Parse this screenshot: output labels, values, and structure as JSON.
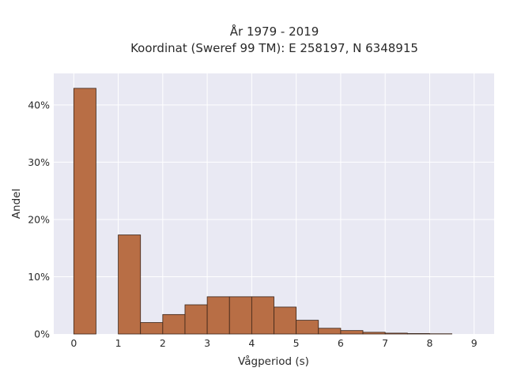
{
  "chart_data": {
    "type": "bar",
    "title": [
      "År 1979 - 2019",
      "Koordinat (Sweref 99 TM): E 258197, N 6348915"
    ],
    "xlabel": "Vågperiod (s)",
    "ylabel": "Andel",
    "xlim": [
      -0.45,
      9.45
    ],
    "ylim": [
      0,
      0.455
    ],
    "x_ticks": [
      0,
      1,
      2,
      3,
      4,
      5,
      6,
      7,
      8,
      9
    ],
    "x_tick_labels": [
      "0",
      "1",
      "2",
      "3",
      "4",
      "5",
      "6",
      "7",
      "8",
      "9"
    ],
    "y_ticks": [
      0,
      0.1,
      0.2,
      0.3,
      0.4
    ],
    "y_tick_labels": [
      "0%",
      "10%",
      "20%",
      "30%",
      "40%"
    ],
    "grid": true,
    "bar_color": "#b86e45",
    "bar_edge_color": "#3a2418",
    "plot_background": "#e9e9f3",
    "bins": [
      {
        "start": 0.0,
        "end": 0.5,
        "value": 0.429
      },
      {
        "start": 0.5,
        "end": 1.0,
        "value": 0.0
      },
      {
        "start": 1.0,
        "end": 1.5,
        "value": 0.173
      },
      {
        "start": 1.5,
        "end": 2.0,
        "value": 0.02
      },
      {
        "start": 2.0,
        "end": 2.5,
        "value": 0.034
      },
      {
        "start": 2.5,
        "end": 3.0,
        "value": 0.051
      },
      {
        "start": 3.0,
        "end": 3.5,
        "value": 0.065
      },
      {
        "start": 3.5,
        "end": 4.0,
        "value": 0.065
      },
      {
        "start": 4.0,
        "end": 4.5,
        "value": 0.065
      },
      {
        "start": 4.5,
        "end": 5.0,
        "value": 0.047
      },
      {
        "start": 5.0,
        "end": 5.5,
        "value": 0.024
      },
      {
        "start": 5.5,
        "end": 6.0,
        "value": 0.01
      },
      {
        "start": 6.0,
        "end": 6.5,
        "value": 0.006
      },
      {
        "start": 6.5,
        "end": 7.0,
        "value": 0.003
      },
      {
        "start": 7.0,
        "end": 7.5,
        "value": 0.0015
      },
      {
        "start": 7.5,
        "end": 8.0,
        "value": 0.0008
      },
      {
        "start": 8.0,
        "end": 8.5,
        "value": 0.0004
      }
    ]
  }
}
